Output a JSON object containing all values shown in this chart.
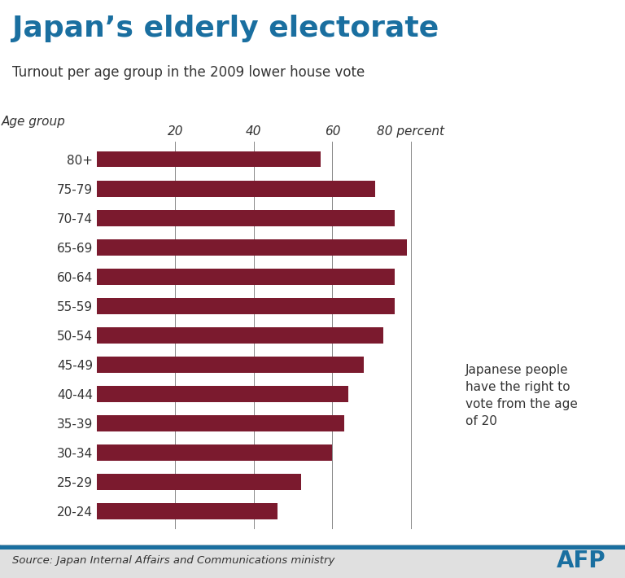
{
  "title": "Japan’s elderly electorate",
  "subtitle": "Turnout per age group in the 2009 lower house vote",
  "source": "Source: Japan Internal Affairs and Communications ministry",
  "age_label": "Age group",
  "annotation": "Japanese people\nhave the right to\nvote from the age\nof 20",
  "categories": [
    "80+",
    "75-79",
    "70-74",
    "65-69",
    "60-64",
    "55-59",
    "50-54",
    "45-49",
    "40-44",
    "35-39",
    "30-34",
    "25-29",
    "20-24"
  ],
  "values": [
    57,
    71,
    76,
    79,
    76,
    76,
    73,
    68,
    64,
    63,
    60,
    52,
    46
  ],
  "bar_color": "#7b1a2e",
  "bg_color": "#ffffff",
  "title_color": "#1a6fa0",
  "subtitle_color": "#333333",
  "grid_color": "#888888",
  "xlim": [
    0,
    90
  ],
  "xticks": [
    0,
    20,
    40,
    60,
    80
  ],
  "footer_bg": "#e0e0e0",
  "footer_line_color": "#1a6fa0",
  "afp_color": "#1a6fa0",
  "annotation_color": "#333333",
  "yticklabel_color": "#333333"
}
